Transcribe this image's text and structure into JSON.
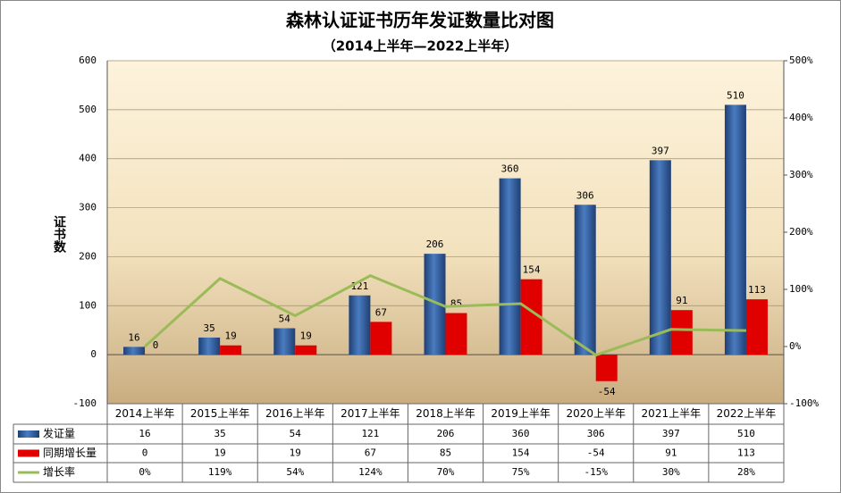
{
  "chart_data": {
    "type": "bar-line",
    "title": "森林认证证书历年发证数量比对图",
    "subtitle": "（2014上半年—2022上半年）",
    "y_label": "证书数",
    "categories": [
      "2014上半年",
      "2015上半年",
      "2016上半年",
      "2017上半年",
      "2018上半年",
      "2019上半年",
      "2020上半年",
      "2021上半年",
      "2022上半年"
    ],
    "series": [
      {
        "name": "发证量",
        "color": "#2e5b9a",
        "type": "bar",
        "values": [
          16,
          35,
          54,
          121,
          206,
          360,
          306,
          397,
          510
        ]
      },
      {
        "name": "同期增长量",
        "color": "#e00000",
        "type": "bar",
        "values": [
          0,
          19,
          19,
          67,
          85,
          154,
          -54,
          91,
          113
        ]
      },
      {
        "name": "增长率",
        "color": "#9bbb59",
        "type": "line",
        "axis": "y2",
        "values": [
          0,
          119,
          54,
          124,
          70,
          75,
          -15,
          30,
          28
        ],
        "value_labels": [
          "0%",
          "119%",
          "54%",
          "124%",
          "70%",
          "75%",
          "-15%",
          "30%",
          "28%"
        ]
      }
    ],
    "ylim": [
      -100,
      600
    ],
    "yticks": [
      -100,
      0,
      100,
      200,
      300,
      400,
      500,
      600
    ],
    "y2lim": [
      -100,
      500
    ],
    "y2ticks": [
      {
        "value": -100,
        "label": "-100%"
      },
      {
        "value": 0,
        "label": "0%"
      },
      {
        "value": 100,
        "label": "100%"
      },
      {
        "value": 200,
        "label": "200%"
      },
      {
        "value": 300,
        "label": "300%"
      },
      {
        "value": 400,
        "label": "400%"
      },
      {
        "value": 500,
        "label": "500%"
      }
    ],
    "grid": true
  }
}
